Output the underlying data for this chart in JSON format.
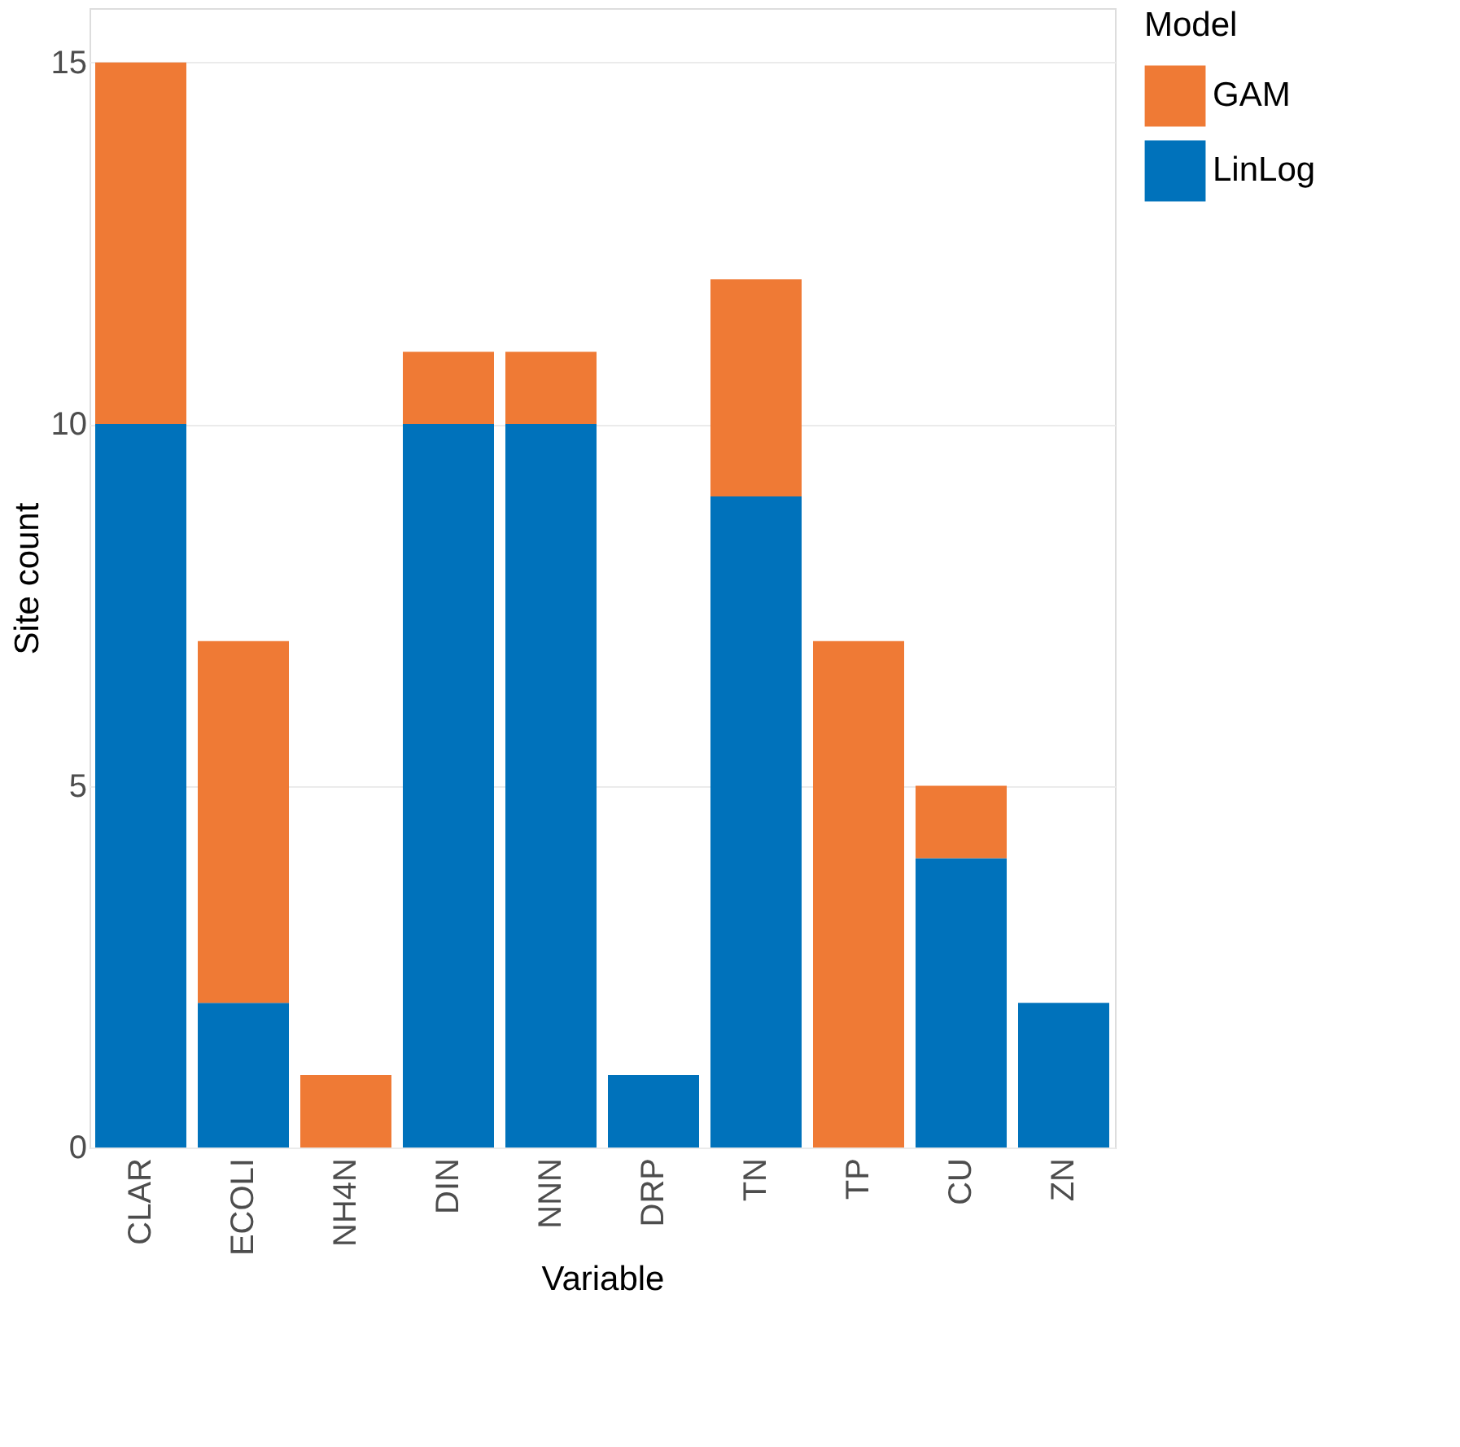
{
  "chart_data": {
    "type": "bar",
    "stacked": true,
    "xlabel": "Variable",
    "ylabel": "Site count",
    "legend_title": "Model",
    "categories": [
      "CLAR",
      "ECOLI",
      "NH4N",
      "DIN",
      "NNN",
      "DRP",
      "TN",
      "TP",
      "CU",
      "ZN"
    ],
    "series": [
      {
        "name": "LinLog",
        "color": "#0072bb",
        "values": [
          10,
          2,
          0,
          10,
          10,
          1,
          9,
          0,
          4,
          2
        ]
      },
      {
        "name": "GAM",
        "color": "#ef7a35",
        "values": [
          5,
          5,
          1,
          1,
          1,
          0,
          3,
          7,
          1,
          0
        ]
      }
    ],
    "ylim": [
      0,
      15.75
    ],
    "yticks": [
      0,
      5,
      10,
      15
    ],
    "grid": "y",
    "legend": "right"
  }
}
